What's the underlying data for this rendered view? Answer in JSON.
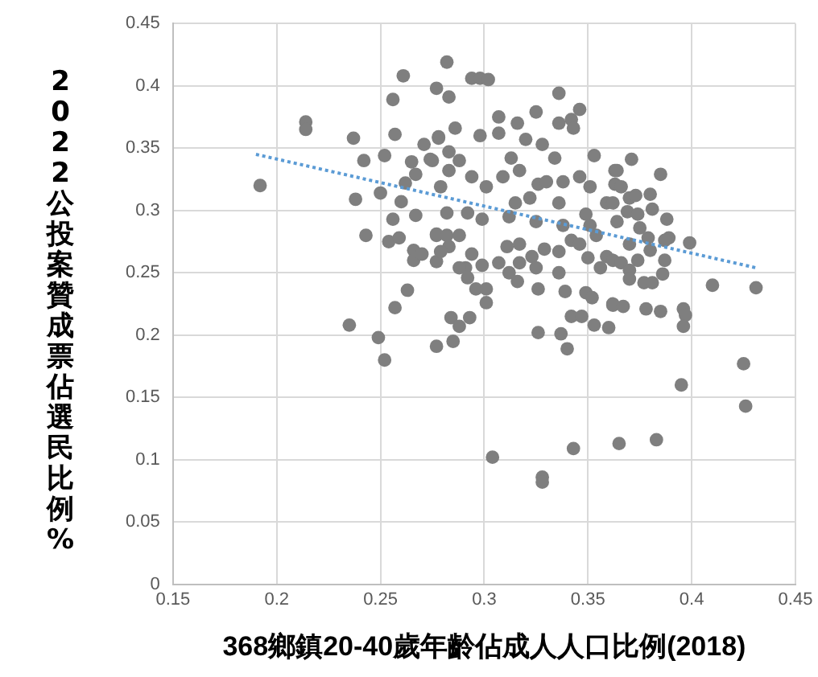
{
  "chart_data": {
    "type": "scatter",
    "xlabel": "368鄉鎮20-40歲年齡佔成人人口比例(2018)",
    "ylabel": "2022公投案贊成票佔選民比例%",
    "xlim": [
      0.15,
      0.45
    ],
    "xticks": [
      0.15,
      0.2,
      0.25,
      0.3,
      0.35,
      0.4,
      0.45
    ],
    "ylim": [
      0,
      0.45
    ],
    "yticks": [
      0,
      0.05,
      0.1,
      0.15,
      0.2,
      0.25,
      0.3,
      0.35,
      0.4,
      0.45
    ],
    "grid": true,
    "series": [
      {
        "color": "#7f7f7f",
        "marker": "circle",
        "x": [
          0.192,
          0.214,
          0.214,
          0.237,
          0.242,
          0.238,
          0.243,
          0.235,
          0.249,
          0.252,
          0.257,
          0.263,
          0.261,
          0.256,
          0.257,
          0.252,
          0.25,
          0.256,
          0.254,
          0.259,
          0.262,
          0.26,
          0.265,
          0.267,
          0.267,
          0.266,
          0.266,
          0.27,
          0.271,
          0.274,
          0.277,
          0.277,
          0.277,
          0.278,
          0.282,
          0.283,
          0.294,
          0.298,
          0.302,
          0.286,
          0.278,
          0.283,
          0.283,
          0.279,
          0.282,
          0.292,
          0.277,
          0.282,
          0.283,
          0.277,
          0.291,
          0.294,
          0.292,
          0.299,
          0.296,
          0.301,
          0.301,
          0.284,
          0.293,
          0.288,
          0.285,
          0.304,
          0.328,
          0.328,
          0.343,
          0.326,
          0.337,
          0.34,
          0.342,
          0.347,
          0.353,
          0.349,
          0.352,
          0.362,
          0.298,
          0.307,
          0.316,
          0.325,
          0.336,
          0.346,
          0.342,
          0.336,
          0.353,
          0.363,
          0.307,
          0.313,
          0.32,
          0.328,
          0.334,
          0.343,
          0.288,
          0.294,
          0.301,
          0.309,
          0.317,
          0.326,
          0.33,
          0.338,
          0.346,
          0.351,
          0.359,
          0.315,
          0.322,
          0.336,
          0.349,
          0.299,
          0.312,
          0.325,
          0.338,
          0.311,
          0.317,
          0.323,
          0.329,
          0.336,
          0.342,
          0.307,
          0.312,
          0.317,
          0.325,
          0.316,
          0.326,
          0.336,
          0.339,
          0.356,
          0.359,
          0.35,
          0.354,
          0.351,
          0.346,
          0.288,
          0.288,
          0.279,
          0.275,
          0.371,
          0.364,
          0.385,
          0.363,
          0.366,
          0.362,
          0.37,
          0.373,
          0.38,
          0.381,
          0.369,
          0.374,
          0.388,
          0.364,
          0.375,
          0.389,
          0.399,
          0.379,
          0.37,
          0.387,
          0.38,
          0.387,
          0.362,
          0.366,
          0.374,
          0.37,
          0.37,
          0.386,
          0.377,
          0.381,
          0.41,
          0.431,
          0.362,
          0.367,
          0.378,
          0.385,
          0.396,
          0.397,
          0.396,
          0.36,
          0.425,
          0.395,
          0.426,
          0.365,
          0.383
        ],
        "values": [
          0.32,
          0.371,
          0.365,
          0.358,
          0.34,
          0.309,
          0.28,
          0.208,
          0.198,
          0.18,
          0.222,
          0.236,
          0.408,
          0.389,
          0.361,
          0.344,
          0.314,
          0.293,
          0.275,
          0.278,
          0.322,
          0.307,
          0.339,
          0.329,
          0.296,
          0.268,
          0.26,
          0.265,
          0.353,
          0.341,
          0.398,
          0.281,
          0.191,
          0.359,
          0.419,
          0.391,
          0.406,
          0.406,
          0.405,
          0.366,
          0.358,
          0.347,
          0.332,
          0.319,
          0.298,
          0.298,
          0.28,
          0.28,
          0.271,
          0.259,
          0.254,
          0.265,
          0.246,
          0.256,
          0.237,
          0.237,
          0.226,
          0.214,
          0.214,
          0.207,
          0.195,
          0.102,
          0.086,
          0.082,
          0.109,
          0.202,
          0.201,
          0.189,
          0.215,
          0.215,
          0.208,
          0.234,
          0.23,
          0.224,
          0.36,
          0.375,
          0.37,
          0.379,
          0.394,
          0.381,
          0.373,
          0.37,
          0.344,
          0.332,
          0.362,
          0.342,
          0.357,
          0.353,
          0.342,
          0.366,
          0.34,
          0.327,
          0.319,
          0.327,
          0.332,
          0.321,
          0.323,
          0.323,
          0.327,
          0.319,
          0.306,
          0.306,
          0.31,
          0.306,
          0.297,
          0.293,
          0.295,
          0.291,
          0.288,
          0.271,
          0.273,
          0.263,
          0.269,
          0.267,
          0.276,
          0.258,
          0.25,
          0.258,
          0.254,
          0.243,
          0.237,
          0.25,
          0.235,
          0.254,
          0.263,
          0.262,
          0.28,
          0.288,
          0.273,
          0.28,
          0.254,
          0.267,
          0.34,
          0.341,
          0.332,
          0.329,
          0.321,
          0.319,
          0.306,
          0.31,
          0.312,
          0.313,
          0.301,
          0.299,
          0.297,
          0.293,
          0.291,
          0.286,
          0.278,
          0.274,
          0.278,
          0.273,
          0.276,
          0.268,
          0.26,
          0.26,
          0.258,
          0.26,
          0.252,
          0.245,
          0.249,
          0.242,
          0.242,
          0.24,
          0.238,
          0.225,
          0.223,
          0.221,
          0.219,
          0.221,
          0.216,
          0.207,
          0.206,
          0.177,
          0.16,
          0.143,
          0.113,
          0.116
        ]
      },
      {
        "type": "line",
        "color": "#5b9bd5",
        "marker": "none",
        "line_style": "dotted",
        "x": [
          0.19,
          0.431
        ],
        "values": [
          0.345,
          0.254
        ]
      }
    ]
  }
}
